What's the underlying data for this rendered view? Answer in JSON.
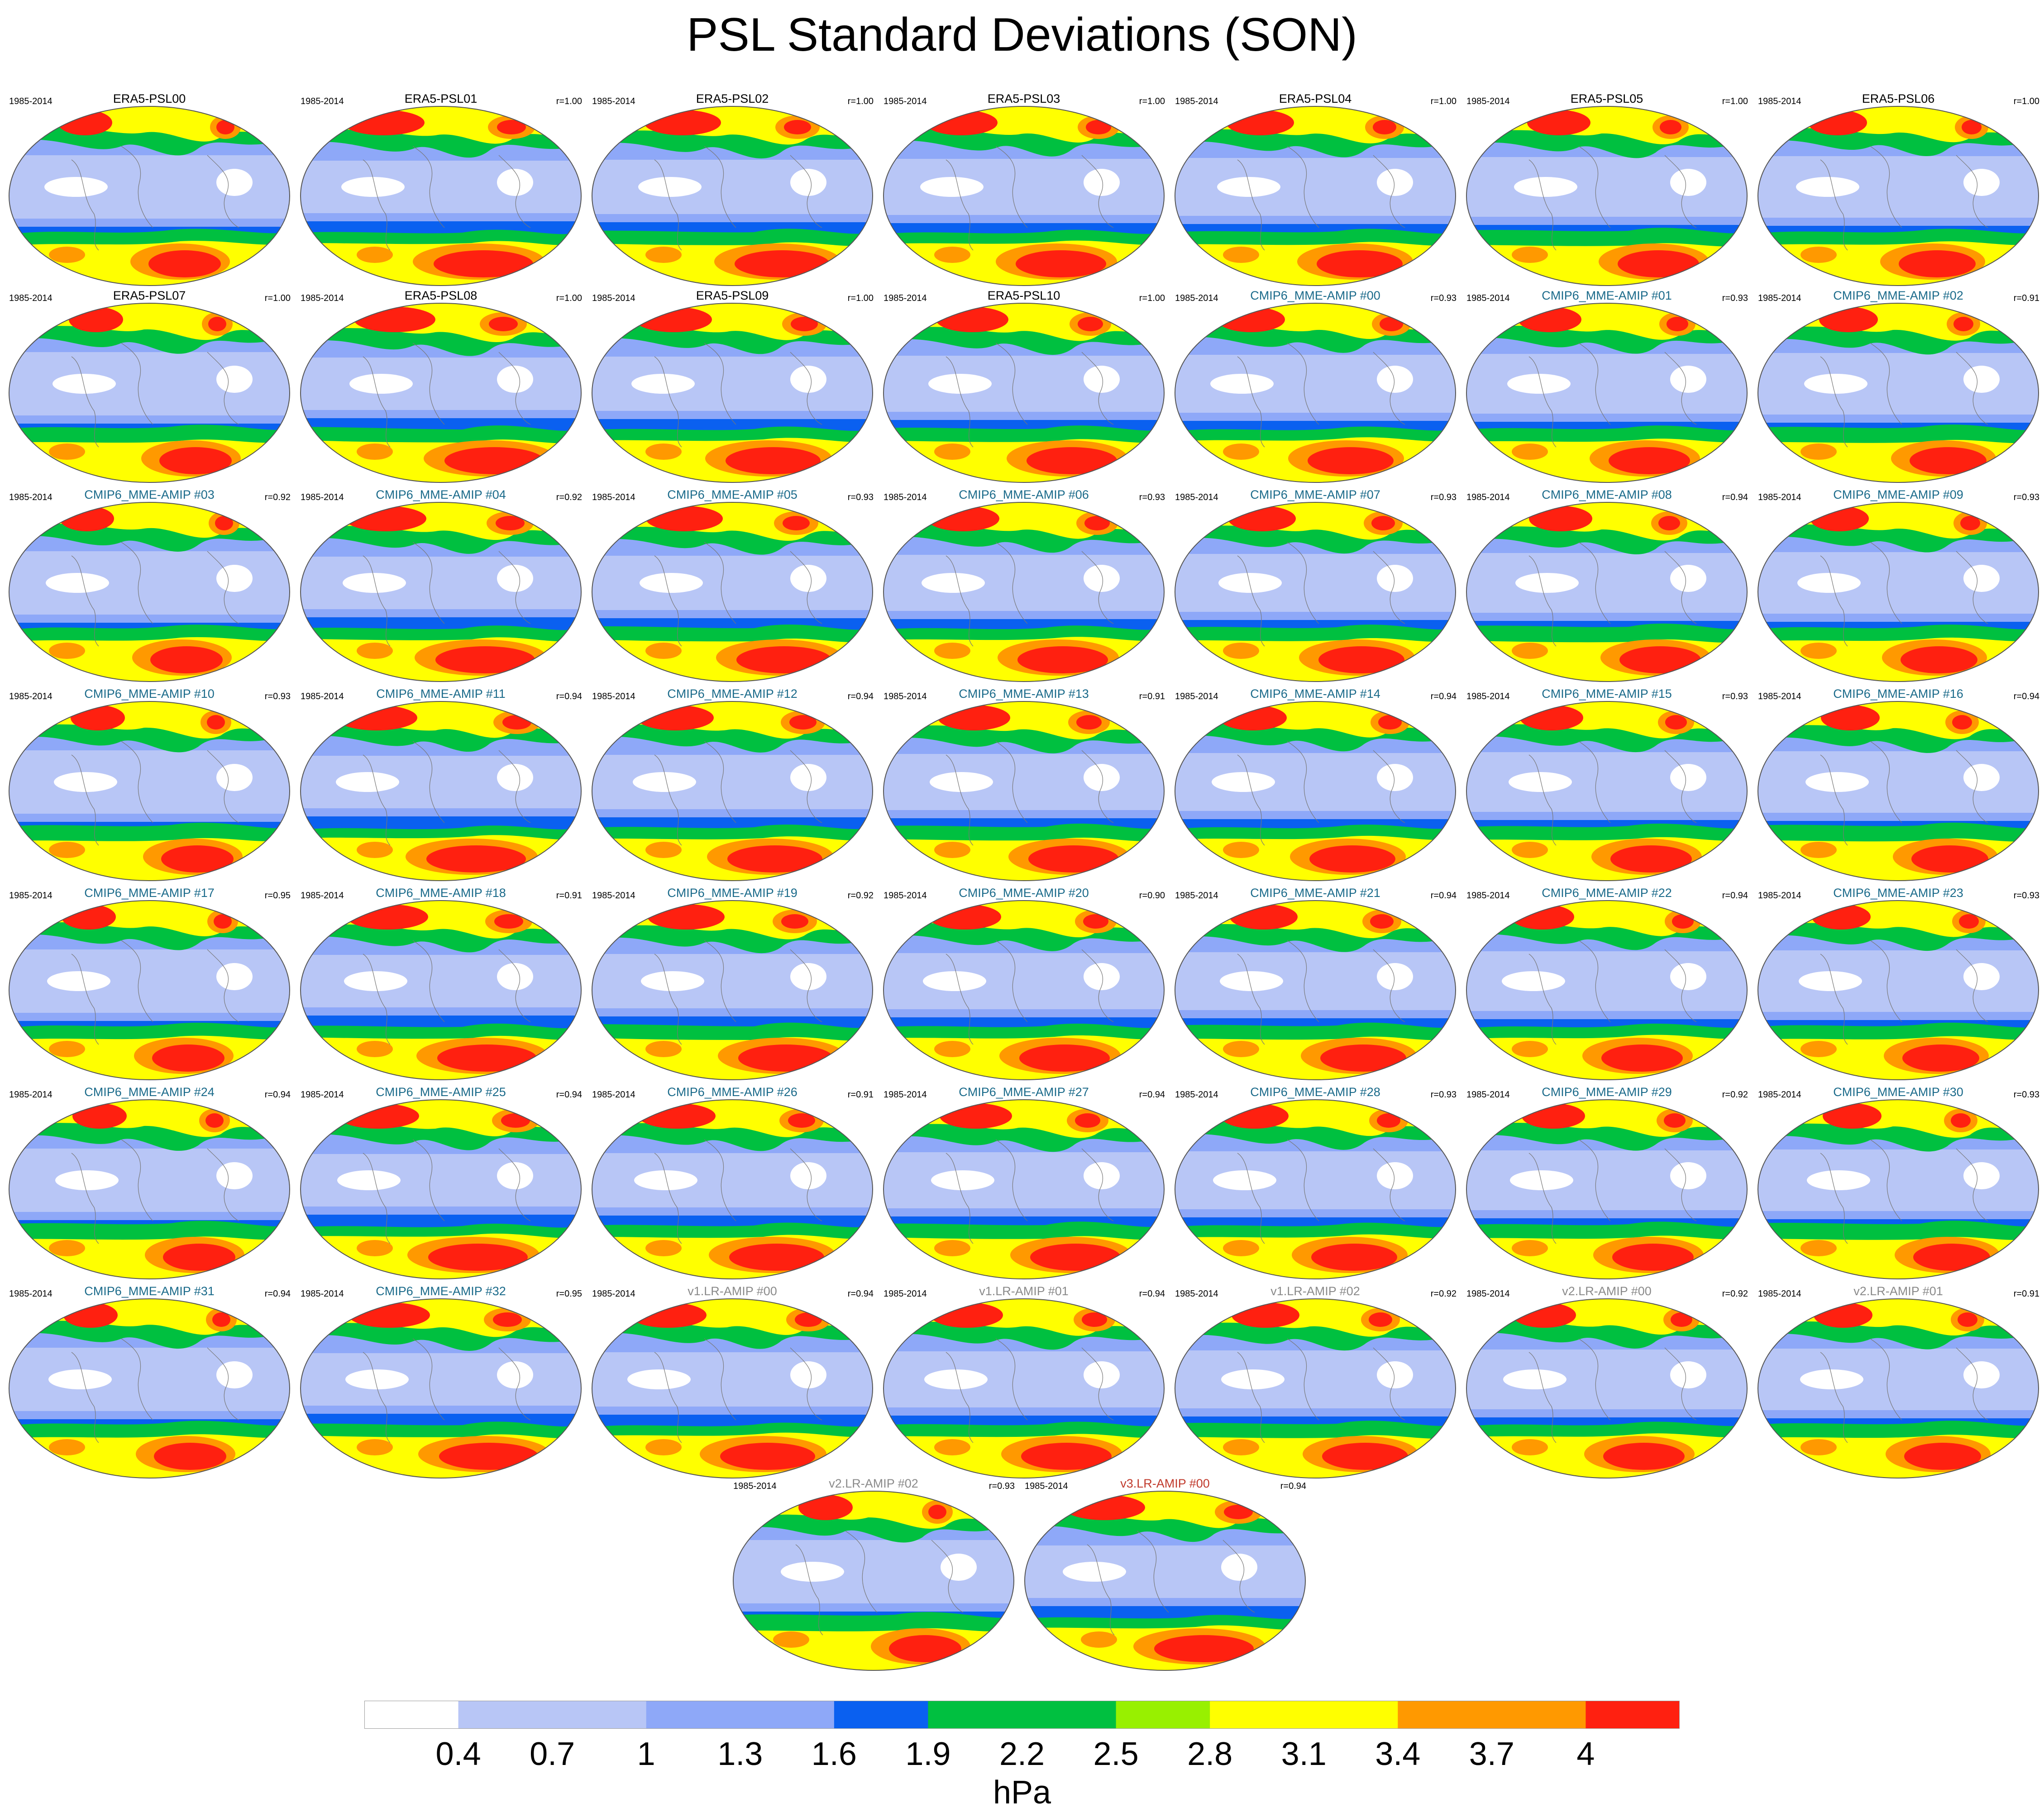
{
  "title": "PSL Standard Deviations (SON)",
  "colors": {
    "obs_title": "#000000",
    "cmip6_title": "#1a6a8a",
    "v1_title": "#8a8a8a",
    "v2_title": "#8a8a8a",
    "v3_title": "#c0392b"
  },
  "panels": [
    {
      "title": "ERA5-PSL00",
      "period": "1985-2014",
      "corr": "",
      "group": "obs"
    },
    {
      "title": "ERA5-PSL01",
      "period": "1985-2014",
      "corr": "r=1.00",
      "group": "obs"
    },
    {
      "title": "ERA5-PSL02",
      "period": "1985-2014",
      "corr": "r=1.00",
      "group": "obs"
    },
    {
      "title": "ERA5-PSL03",
      "period": "1985-2014",
      "corr": "r=1.00",
      "group": "obs"
    },
    {
      "title": "ERA5-PSL04",
      "period": "1985-2014",
      "corr": "r=1.00",
      "group": "obs"
    },
    {
      "title": "ERA5-PSL05",
      "period": "1985-2014",
      "corr": "r=1.00",
      "group": "obs"
    },
    {
      "title": "ERA5-PSL06",
      "period": "1985-2014",
      "corr": "r=1.00",
      "group": "obs"
    },
    {
      "title": "ERA5-PSL07",
      "period": "1985-2014",
      "corr": "r=1.00",
      "group": "obs"
    },
    {
      "title": "ERA5-PSL08",
      "period": "1985-2014",
      "corr": "r=1.00",
      "group": "obs"
    },
    {
      "title": "ERA5-PSL09",
      "period": "1985-2014",
      "corr": "r=1.00",
      "group": "obs"
    },
    {
      "title": "ERA5-PSL10",
      "period": "1985-2014",
      "corr": "r=1.00",
      "group": "obs"
    },
    {
      "title": "CMIP6_MME-AMIP  #00",
      "period": "1985-2014",
      "corr": "r=0.93",
      "group": "cmip6"
    },
    {
      "title": "CMIP6_MME-AMIP  #01",
      "period": "1985-2014",
      "corr": "r=0.93",
      "group": "cmip6"
    },
    {
      "title": "CMIP6_MME-AMIP  #02",
      "period": "1985-2014",
      "corr": "r=0.91",
      "group": "cmip6"
    },
    {
      "title": "CMIP6_MME-AMIP  #03",
      "period": "1985-2014",
      "corr": "r=0.92",
      "group": "cmip6"
    },
    {
      "title": "CMIP6_MME-AMIP  #04",
      "period": "1985-2014",
      "corr": "r=0.92",
      "group": "cmip6"
    },
    {
      "title": "CMIP6_MME-AMIP  #05",
      "period": "1985-2014",
      "corr": "r=0.93",
      "group": "cmip6"
    },
    {
      "title": "CMIP6_MME-AMIP  #06",
      "period": "1985-2014",
      "corr": "r=0.93",
      "group": "cmip6"
    },
    {
      "title": "CMIP6_MME-AMIP  #07",
      "period": "1985-2014",
      "corr": "r=0.93",
      "group": "cmip6"
    },
    {
      "title": "CMIP6_MME-AMIP  #08",
      "period": "1985-2014",
      "corr": "r=0.94",
      "group": "cmip6"
    },
    {
      "title": "CMIP6_MME-AMIP  #09",
      "period": "1985-2014",
      "corr": "r=0.93",
      "group": "cmip6"
    },
    {
      "title": "CMIP6_MME-AMIP  #10",
      "period": "1985-2014",
      "corr": "r=0.93",
      "group": "cmip6"
    },
    {
      "title": "CMIP6_MME-AMIP  #11",
      "period": "1985-2014",
      "corr": "r=0.94",
      "group": "cmip6"
    },
    {
      "title": "CMIP6_MME-AMIP  #12",
      "period": "1985-2014",
      "corr": "r=0.94",
      "group": "cmip6"
    },
    {
      "title": "CMIP6_MME-AMIP  #13",
      "period": "1985-2014",
      "corr": "r=0.91",
      "group": "cmip6"
    },
    {
      "title": "CMIP6_MME-AMIP  #14",
      "period": "1985-2014",
      "corr": "r=0.94",
      "group": "cmip6"
    },
    {
      "title": "CMIP6_MME-AMIP  #15",
      "period": "1985-2014",
      "corr": "r=0.93",
      "group": "cmip6"
    },
    {
      "title": "CMIP6_MME-AMIP  #16",
      "period": "1985-2014",
      "corr": "r=0.94",
      "group": "cmip6"
    },
    {
      "title": "CMIP6_MME-AMIP  #17",
      "period": "1985-2014",
      "corr": "r=0.95",
      "group": "cmip6"
    },
    {
      "title": "CMIP6_MME-AMIP  #18",
      "period": "1985-2014",
      "corr": "r=0.91",
      "group": "cmip6"
    },
    {
      "title": "CMIP6_MME-AMIP  #19",
      "period": "1985-2014",
      "corr": "r=0.92",
      "group": "cmip6"
    },
    {
      "title": "CMIP6_MME-AMIP  #20",
      "period": "1985-2014",
      "corr": "r=0.90",
      "group": "cmip6"
    },
    {
      "title": "CMIP6_MME-AMIP  #21",
      "period": "1985-2014",
      "corr": "r=0.94",
      "group": "cmip6"
    },
    {
      "title": "CMIP6_MME-AMIP  #22",
      "period": "1985-2014",
      "corr": "r=0.94",
      "group": "cmip6"
    },
    {
      "title": "CMIP6_MME-AMIP  #23",
      "period": "1985-2014",
      "corr": "r=0.93",
      "group": "cmip6"
    },
    {
      "title": "CMIP6_MME-AMIP  #24",
      "period": "1985-2014",
      "corr": "r=0.94",
      "group": "cmip6"
    },
    {
      "title": "CMIP6_MME-AMIP  #25",
      "period": "1985-2014",
      "corr": "r=0.94",
      "group": "cmip6"
    },
    {
      "title": "CMIP6_MME-AMIP  #26",
      "period": "1985-2014",
      "corr": "r=0.91",
      "group": "cmip6"
    },
    {
      "title": "CMIP6_MME-AMIP  #27",
      "period": "1985-2014",
      "corr": "r=0.94",
      "group": "cmip6"
    },
    {
      "title": "CMIP6_MME-AMIP  #28",
      "period": "1985-2014",
      "corr": "r=0.93",
      "group": "cmip6"
    },
    {
      "title": "CMIP6_MME-AMIP  #29",
      "period": "1985-2014",
      "corr": "r=0.92",
      "group": "cmip6"
    },
    {
      "title": "CMIP6_MME-AMIP  #30",
      "period": "1985-2014",
      "corr": "r=0.93",
      "group": "cmip6"
    },
    {
      "title": "CMIP6_MME-AMIP  #31",
      "period": "1985-2014",
      "corr": "r=0.94",
      "group": "cmip6"
    },
    {
      "title": "CMIP6_MME-AMIP  #32",
      "period": "1985-2014",
      "corr": "r=0.95",
      "group": "cmip6"
    },
    {
      "title": "v1.LR-AMIP  #00",
      "period": "1985-2014",
      "corr": "r=0.94",
      "group": "v1"
    },
    {
      "title": "v1.LR-AMIP  #01",
      "period": "1985-2014",
      "corr": "r=0.94",
      "group": "v1"
    },
    {
      "title": "v1.LR-AMIP  #02",
      "period": "1985-2014",
      "corr": "r=0.92",
      "group": "v1"
    },
    {
      "title": "v2.LR-AMIP  #00",
      "period": "1985-2014",
      "corr": "r=0.92",
      "group": "v2"
    },
    {
      "title": "v2.LR-AMIP  #01",
      "period": "1985-2014",
      "corr": "r=0.91",
      "group": "v2"
    },
    {
      "title": "v2.LR-AMIP  #02",
      "period": "1985-2014",
      "corr": "r=0.93",
      "group": "v2"
    },
    {
      "title": "v3.LR-AMIP  #00",
      "period": "1985-2014",
      "corr": "r=0.94",
      "group": "v3"
    }
  ],
  "colorbar": {
    "colors": [
      "#ffffff",
      "#b8c6f6",
      "#b8c6f6",
      "#8ea8f8",
      "#8ea8f8",
      "#0a60f0",
      "#00c040",
      "#00c040",
      "#98f000",
      "#ffff00",
      "#ffff00",
      "#ff9900",
      "#ff9900",
      "#ff2010"
    ],
    "labels": [
      "0.4",
      "0.7",
      "1",
      "1.3",
      "1.6",
      "1.9",
      "2.2",
      "2.5",
      "2.8",
      "3.1",
      "3.4",
      "3.7",
      "4"
    ],
    "units": "hPa"
  }
}
